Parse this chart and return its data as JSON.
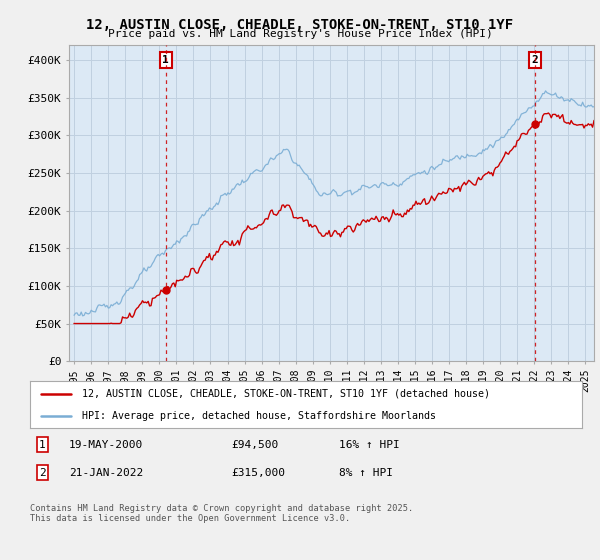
{
  "title": "12, AUSTIN CLOSE, CHEADLE, STOKE-ON-TRENT, ST10 1YF",
  "subtitle": "Price paid vs. HM Land Registry's House Price Index (HPI)",
  "ylim": [
    0,
    420000
  ],
  "yticks": [
    0,
    50000,
    100000,
    150000,
    200000,
    250000,
    300000,
    350000,
    400000
  ],
  "ytick_labels": [
    "£0",
    "£50K",
    "£100K",
    "£150K",
    "£200K",
    "£250K",
    "£300K",
    "£350K",
    "£400K"
  ],
  "line1_color": "#cc0000",
  "line2_color": "#7aadd4",
  "bg_color": "#f0f0f0",
  "plot_bg": "#dce9f5",
  "grid_color": "#c0d0e0",
  "sale1_date_x": 2000.38,
  "sale1_price": 94500,
  "sale2_date_x": 2022.05,
  "sale2_price": 315000,
  "legend_line1": "12, AUSTIN CLOSE, CHEADLE, STOKE-ON-TRENT, ST10 1YF (detached house)",
  "legend_line2": "HPI: Average price, detached house, Staffordshire Moorlands",
  "copyright": "Contains HM Land Registry data © Crown copyright and database right 2025.\nThis data is licensed under the Open Government Licence v3.0.",
  "xmin": 1994.7,
  "xmax": 2025.5
}
